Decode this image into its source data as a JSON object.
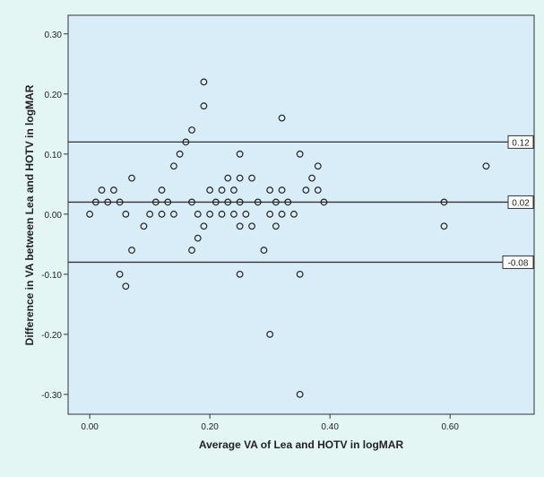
{
  "chart_data": {
    "type": "scatter",
    "title": "",
    "xlabel": "Average VA of Lea and HOTV in logMAR",
    "ylabel": "Difference in VA between Lea and HOTV in logMAR",
    "xlim": [
      -0.036,
      0.74
    ],
    "ylim": [
      -0.333,
      0.331
    ],
    "xticks": [
      0.0,
      0.2,
      0.4,
      0.6
    ],
    "xtick_labels": [
      "0.00",
      "0.20",
      "0.40",
      "0.60"
    ],
    "yticks": [
      0.3,
      0.2,
      0.1,
      0.0,
      -0.1,
      -0.2,
      -0.3
    ],
    "ytick_labels": [
      "0.30",
      "0.20",
      "0.10",
      "0.00",
      "-0.10",
      "-0.20",
      "-0.30"
    ],
    "grid": false,
    "reference_lines": [
      {
        "y": 0.12,
        "label": "0.12"
      },
      {
        "y": 0.02,
        "label": "0.02"
      },
      {
        "y": -0.08,
        "label": "-0.08"
      }
    ],
    "colors": {
      "plot_background": "#d9edf9",
      "page_background": "#e3f6f3",
      "marker": "#222222"
    },
    "points": [
      [
        0.0,
        0.0
      ],
      [
        0.01,
        0.02
      ],
      [
        0.02,
        0.04
      ],
      [
        0.03,
        0.02
      ],
      [
        0.04,
        0.04
      ],
      [
        0.05,
        0.02
      ],
      [
        0.05,
        -0.1
      ],
      [
        0.06,
        0.0
      ],
      [
        0.06,
        -0.12
      ],
      [
        0.07,
        0.06
      ],
      [
        0.07,
        -0.06
      ],
      [
        0.09,
        -0.02
      ],
      [
        0.1,
        0.0
      ],
      [
        0.11,
        0.02
      ],
      [
        0.12,
        0.04
      ],
      [
        0.12,
        0.0
      ],
      [
        0.13,
        0.02
      ],
      [
        0.14,
        0.0
      ],
      [
        0.14,
        0.08
      ],
      [
        0.15,
        0.1
      ],
      [
        0.16,
        0.12
      ],
      [
        0.17,
        0.14
      ],
      [
        0.17,
        0.02
      ],
      [
        0.17,
        -0.06
      ],
      [
        0.18,
        0.0
      ],
      [
        0.18,
        -0.04
      ],
      [
        0.19,
        0.22
      ],
      [
        0.19,
        0.18
      ],
      [
        0.19,
        -0.02
      ],
      [
        0.2,
        0.04
      ],
      [
        0.2,
        0.0
      ],
      [
        0.21,
        0.02
      ],
      [
        0.22,
        0.04
      ],
      [
        0.22,
        0.0
      ],
      [
        0.23,
        0.06
      ],
      [
        0.23,
        0.02
      ],
      [
        0.24,
        0.04
      ],
      [
        0.24,
        0.0
      ],
      [
        0.25,
        0.1
      ],
      [
        0.25,
        0.06
      ],
      [
        0.25,
        0.02
      ],
      [
        0.25,
        -0.02
      ],
      [
        0.25,
        -0.1
      ],
      [
        0.26,
        0.0
      ],
      [
        0.27,
        0.06
      ],
      [
        0.27,
        -0.02
      ],
      [
        0.28,
        0.02
      ],
      [
        0.29,
        -0.06
      ],
      [
        0.3,
        0.04
      ],
      [
        0.3,
        0.0
      ],
      [
        0.3,
        -0.2
      ],
      [
        0.31,
        0.02
      ],
      [
        0.31,
        -0.02
      ],
      [
        0.32,
        0.16
      ],
      [
        0.32,
        0.04
      ],
      [
        0.32,
        0.0
      ],
      [
        0.33,
        0.02
      ],
      [
        0.34,
        0.0
      ],
      [
        0.35,
        0.1
      ],
      [
        0.35,
        -0.1
      ],
      [
        0.35,
        -0.3
      ],
      [
        0.36,
        0.04
      ],
      [
        0.37,
        0.06
      ],
      [
        0.38,
        0.08
      ],
      [
        0.38,
        0.04
      ],
      [
        0.39,
        0.02
      ],
      [
        0.59,
        0.02
      ],
      [
        0.59,
        -0.02
      ],
      [
        0.66,
        0.08
      ]
    ]
  }
}
